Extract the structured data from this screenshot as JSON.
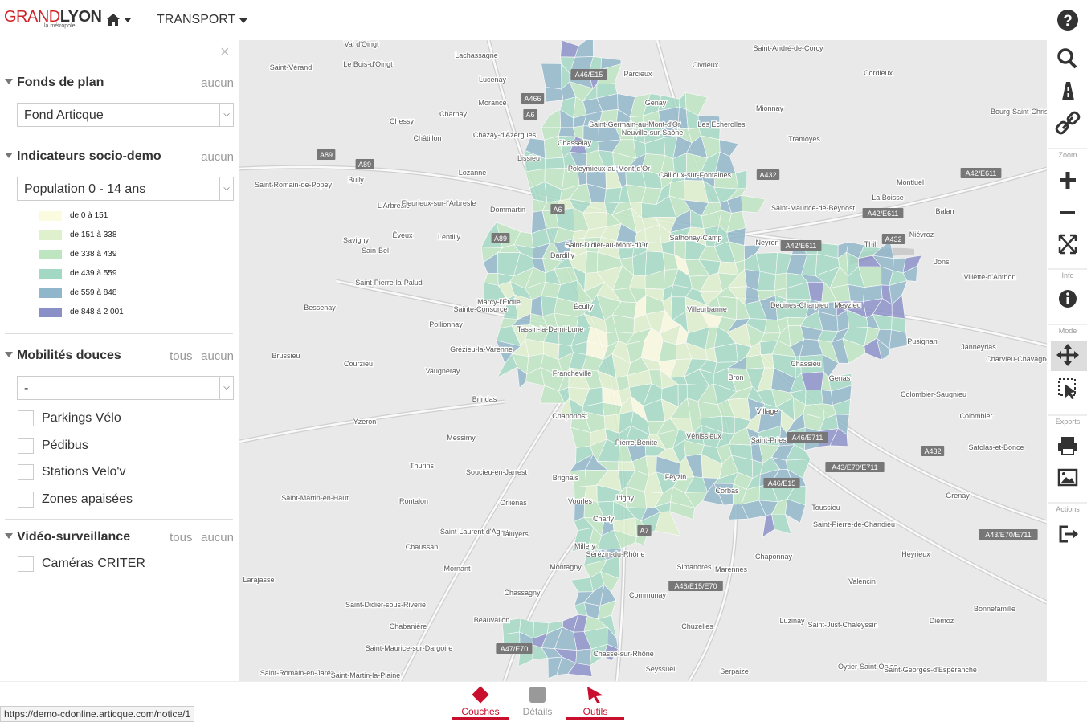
{
  "header": {
    "logo_a": "GRAND",
    "logo_b": "LYON",
    "logo_sub": "la métropole",
    "menu": "TRANSPORT"
  },
  "sidebar": {
    "sections": [
      {
        "title": "Fonds de plan",
        "actions": [
          "aucun"
        ],
        "select": "Fond Articque"
      },
      {
        "title": "Indicateurs socio-demo",
        "actions": [
          "aucun"
        ],
        "select": "Population 0 - 14 ans",
        "legend": [
          {
            "label": "de 0 à 151",
            "color": "#fbfbe0"
          },
          {
            "label": "de 151 à 338",
            "color": "#def0cc"
          },
          {
            "label": "de 338 à 439",
            "color": "#bde5c0"
          },
          {
            "label": "de 439 à 559",
            "color": "#a3d8c4"
          },
          {
            "label": "de 559 à 848",
            "color": "#8fb6ca"
          },
          {
            "label": "de 848 à 2 001",
            "color": "#8a8fc8"
          }
        ]
      },
      {
        "title": "Mobilités douces",
        "actions": [
          "tous",
          "aucun"
        ],
        "select": "-",
        "checkboxes": [
          "Parkings Vélo",
          "Pédibus",
          "Stations Velo'v",
          "Zones apaisées"
        ]
      },
      {
        "title": "Vidéo-surveillance",
        "actions": [
          "tous",
          "aucun"
        ],
        "checkboxes": [
          "Caméras CRITER"
        ]
      }
    ]
  },
  "toolbar": {
    "groups": [
      "Zoom",
      "Info",
      "Mode",
      "Exports",
      "Actions"
    ]
  },
  "map": {
    "places": [
      "Val d'Oingt",
      "Lachassagne",
      "Saint-Vérand",
      "Le Bois-d'Oingt",
      "Lucenay",
      "Morancé",
      "Charnay",
      "Chessy",
      "Châtillon",
      "Chazay-d'Azergues",
      "Chasselay",
      "Lissieu",
      "Lozanne",
      "Bully",
      "Saint-Romain-de-Popey",
      "Dommartin",
      "L'Arbresle",
      "Fleurieux-sur-l'Arbresle",
      "Éveux",
      "Lentilly",
      "Savigny",
      "Sain-Bel",
      "Saint-Pierre-la-Palud",
      "Bessenay",
      "Sainte-Consorce",
      "Pollionnay",
      "Brussieu",
      "Grézieu-la-Varenne",
      "Courzieu",
      "Vaugneray",
      "Brindas",
      "Yzeron",
      "Messimy",
      "Chaponost",
      "Thurins",
      "Soucieu-en-Jarrest",
      "Brignais",
      "Saint-Martin-en-Haut",
      "Rontalon",
      "Orliénas",
      "Vourles",
      "Saint-Laurent-d'Agny",
      "Taluyers",
      "Chaussan",
      "Millery",
      "Mornant",
      "Montagny",
      "Larajasse",
      "Chassagny",
      "Saint-Didier-sous-Riverie",
      "Chabanière",
      "Beauvallon",
      "Saint-Maurice-sur-Dargoire",
      "Saint-Romain-en-Jarez",
      "Saint-Martin-la-Plaine",
      "Chasse-sur-Rhône",
      "Seyssuel",
      "Serpaize",
      "Chuzelles",
      "Communay",
      "Simandres",
      "Marennes",
      "Sérézin-du-Rhône",
      "Chaponnay",
      "Luzinay",
      "Valencin",
      "Saint-Just-Chaleyssin",
      "Heyrieux",
      "Diémoz",
      "Bonnefamille",
      "Oytier-Saint-Oblas",
      "Saint-Georges-d'Espéranche",
      "Saint-Pierre-de-Chandieu",
      "Toussieu",
      "Grenay",
      "Colombier",
      "Satolas-et-Bonce",
      "Colombier-Saugnieu",
      "Genas",
      "Charvieu-Chavagneux",
      "Janneyrias",
      "Pusignan",
      "Villette-d'Anthon",
      "Jons",
      "Thil",
      "Niévroz",
      "Balan",
      "La Boisse",
      "Montluel",
      "Saint-Maurice-de-Beynost",
      "Neyron",
      "Tramoyes",
      "Mionnay",
      "Les Echerolles",
      "Cordieux",
      "Civrieux",
      "Parcieux",
      "Saint-André-de-Corcy",
      "Bourg-Saint-Christophe",
      "Genay",
      "Saint-Germain-au-Mont-d'Or",
      "Neuville-sur-Saône",
      "Poleymieux-au-Mont-d'Or",
      "Cailloux-sur-Fontaines",
      "Sathonay-Camp",
      "Saint-Didier-au-Mont-d'Or",
      "Dardilly",
      "Marcy-l'Étoile",
      "Écully",
      "Tassin-la-Demi-Lune",
      "Francheville",
      "Villeurbanne",
      "Décines-Charpieu",
      "Meyzieu",
      "Chassieu",
      "Bron",
      "Saint-Priest",
      "Vénissieux",
      "Feyzin",
      "Corbas",
      "Irigny",
      "Charly",
      "Pierre-Bénite",
      "Village"
    ],
    "roads": [
      "A46/E15",
      "A466",
      "A6",
      "A89",
      "A89",
      "A432",
      "A42/E611",
      "A42/E611",
      "A432",
      "A42/E611",
      "A6",
      "A89",
      "A432",
      "A43/E70/E711",
      "A43/E70/E711",
      "A46/E15/E70",
      "A7",
      "A47/E70",
      "A46/E15",
      "A46/E711"
    ]
  },
  "tabs": [
    "Couches",
    "Détails",
    "Outils"
  ],
  "status": "https://demo-cdonline.articque.com/notice/1"
}
